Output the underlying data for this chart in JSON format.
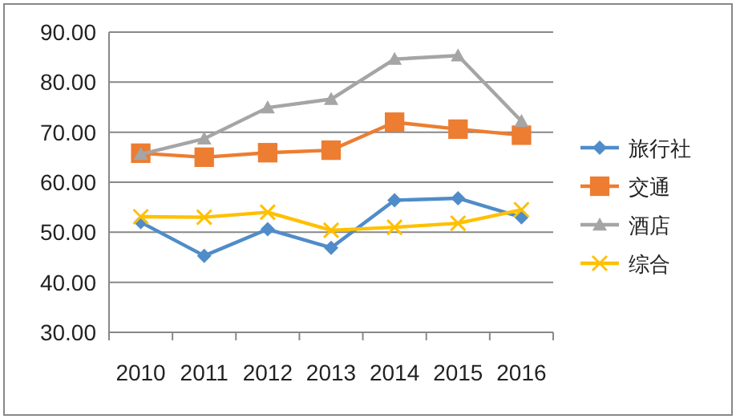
{
  "chart_data": {
    "type": "line",
    "categories": [
      "2010",
      "2011",
      "2012",
      "2013",
      "2014",
      "2015",
      "2016"
    ],
    "ylim": [
      30,
      90
    ],
    "yticks": [
      {
        "value": 30,
        "label": "30.00"
      },
      {
        "value": 40,
        "label": "40.00"
      },
      {
        "value": 50,
        "label": "50.00"
      },
      {
        "value": 60,
        "label": "60.00"
      },
      {
        "value": 70,
        "label": "70.00"
      },
      {
        "value": 80,
        "label": "80.00"
      },
      {
        "value": 90,
        "label": "90.00"
      }
    ],
    "grid": "y",
    "legend": "right",
    "series": [
      {
        "name": "旅行社",
        "color": "#4f8cc9",
        "marker": "diamond",
        "values": [
          52.0,
          45.3,
          50.6,
          46.9,
          56.4,
          56.8,
          53.0
        ]
      },
      {
        "name": "交通",
        "color": "#ed7d31",
        "marker": "square",
        "values": [
          65.8,
          65.0,
          65.9,
          66.4,
          72.0,
          70.6,
          69.4
        ]
      },
      {
        "name": "酒店",
        "color": "#a5a5a5",
        "marker": "triangle",
        "values": [
          65.6,
          68.7,
          74.9,
          76.6,
          84.6,
          85.3,
          72.2
        ]
      },
      {
        "name": "综合",
        "color": "#ffc000",
        "marker": "cross",
        "values": [
          53.1,
          53.0,
          54.0,
          50.4,
          51.0,
          51.8,
          54.5
        ]
      }
    ]
  }
}
